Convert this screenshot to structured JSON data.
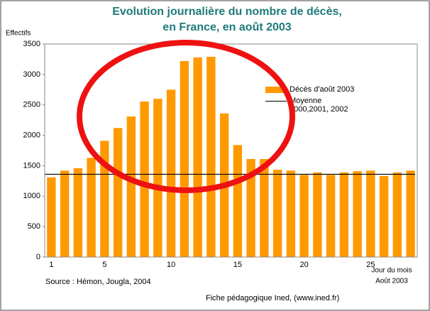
{
  "chart_data": {
    "type": "bar",
    "title": [
      "Evolution journalière du nombre de décès,",
      "en France,  en août 2003"
    ],
    "ylabel": "Effectifs",
    "xlabel": "Jour du mois",
    "xlabel_sub": "Août 2003",
    "source": "Source : Hémon, Jougla, 2004",
    "credit": "Fiche pédagogique Ined, (www.ined.fr)",
    "categories": [
      "1",
      null,
      null,
      null,
      "5",
      null,
      null,
      null,
      null,
      "10",
      null,
      null,
      null,
      null,
      "15",
      null,
      null,
      null,
      null,
      "20",
      null,
      null,
      null,
      null,
      "25",
      null,
      null,
      null
    ],
    "series": [
      {
        "name": "Décès d'août 2003",
        "color": "#ff9900",
        "values": [
          1310,
          1420,
          1460,
          1630,
          1910,
          2120,
          2310,
          2555,
          2600,
          2750,
          3220,
          3280,
          3290,
          2360,
          1840,
          1610,
          1610,
          1435,
          1420,
          1350,
          1390,
          1350,
          1390,
          1410,
          1420,
          1330,
          1390,
          1420
        ]
      }
    ],
    "average": {
      "name": "Moyenne 2000,2001, 2002",
      "color": "#000000",
      "value": 1360
    },
    "ylim": [
      0,
      3500
    ],
    "yticks": [
      0,
      500,
      1000,
      1500,
      2000,
      2500,
      3000,
      3500
    ],
    "grid": false
  }
}
